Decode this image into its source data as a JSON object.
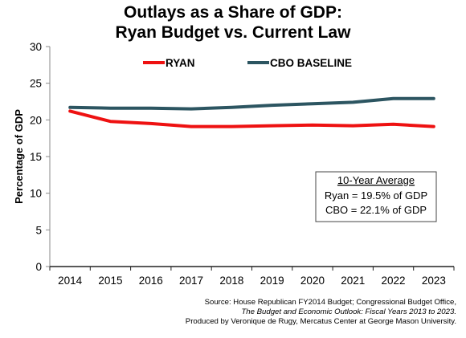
{
  "chart_data": {
    "type": "line",
    "title": [
      "Outlays as a Share of GDP:",
      "Ryan Budget vs. Current Law"
    ],
    "ylabel": "Percentage of GDP",
    "xlabel": "",
    "categories": [
      "2014",
      "2015",
      "2016",
      "2017",
      "2018",
      "2019",
      "2020",
      "2021",
      "2022",
      "2023"
    ],
    "ylim": [
      0,
      30
    ],
    "yticks": [
      0,
      5,
      10,
      15,
      20,
      25,
      30
    ],
    "grid": false,
    "legend_position": "top",
    "series": [
      {
        "name": "RYAN",
        "color": "#ee1111",
        "values": [
          21.2,
          19.8,
          19.5,
          19.1,
          19.1,
          19.2,
          19.3,
          19.2,
          19.4,
          19.1
        ]
      },
      {
        "name": "CBO BASELINE",
        "color": "#2c5561",
        "values": [
          21.7,
          21.6,
          21.6,
          21.5,
          21.7,
          22.0,
          22.2,
          22.4,
          22.9,
          22.9
        ]
      }
    ],
    "annotation": {
      "heading": "10-Year Average",
      "lines": [
        "Ryan = 19.5% of GDP",
        "CBO = 22.1% of GDP"
      ]
    }
  },
  "source": {
    "line1": "Source: House Republican FY2014 Budget; Congressional Budget Office,",
    "line2": "The Budget and Economic Outlook: Fiscal Years 2013 to 2023.",
    "line3": "Produced by Veronique de Rugy, Mercatus Center at George Mason University."
  }
}
